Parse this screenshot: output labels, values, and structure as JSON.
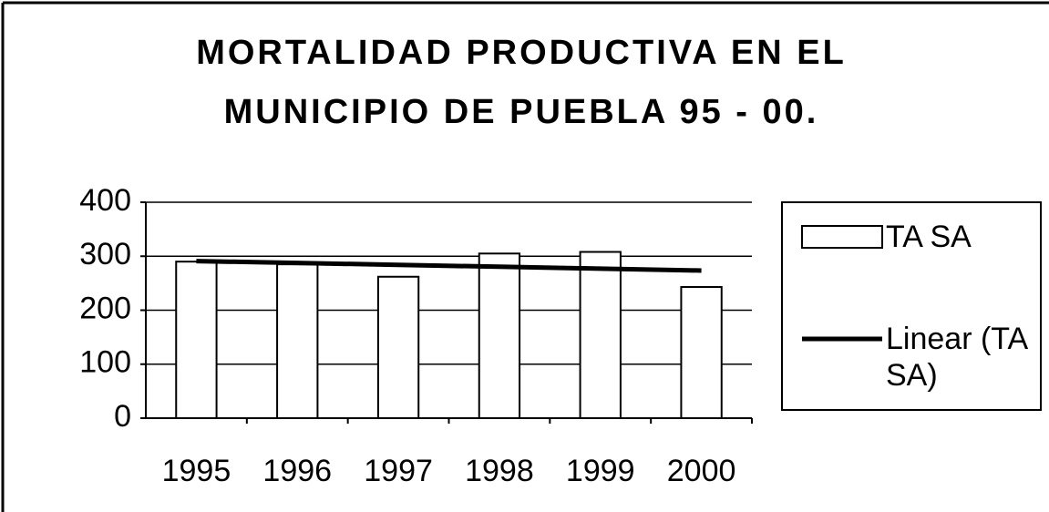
{
  "chart_data": {
    "type": "bar",
    "title": [
      "MORTALIDAD PRODUCTIVA EN EL",
      "MUNICIPIO DE PUEBLA 95 - 00."
    ],
    "categories": [
      "1995",
      "1996",
      "1997",
      "1998",
      "1999",
      "2000"
    ],
    "series": [
      {
        "name": "TA SA",
        "color": "#ffffff",
        "values": [
          290,
          285,
          262,
          305,
          308,
          243
        ]
      },
      {
        "name": "Linear (TA SA)",
        "color": "#000000",
        "type": "line",
        "values": [
          291,
          287.5,
          284,
          280.5,
          277,
          273.5
        ]
      }
    ],
    "ylim": [
      0,
      400
    ],
    "yticks": [
      0,
      100,
      200,
      300,
      400
    ],
    "grid": true,
    "legend": "right"
  }
}
